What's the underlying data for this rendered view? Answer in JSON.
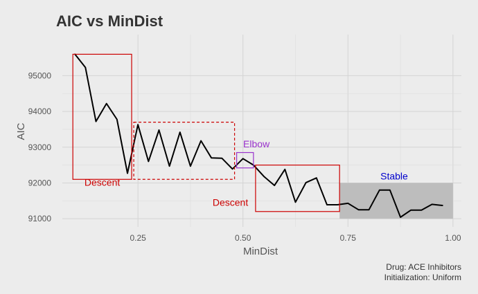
{
  "chart_data": {
    "type": "line",
    "title": "AIC vs MinDist",
    "xlabel": "MinDist",
    "ylabel": "AIC",
    "xlim": [
      0.07,
      1.02
    ],
    "ylim": [
      90770,
      96150
    ],
    "x_ticks": [
      0.25,
      0.5,
      0.75,
      1.0
    ],
    "x_tick_labels": [
      "0.25",
      "0.50",
      "0.75",
      "1.00"
    ],
    "y_ticks": [
      91000,
      92000,
      93000,
      94000,
      95000
    ],
    "y_tick_labels": [
      "91000",
      "92000",
      "93000",
      "94000",
      "95000"
    ],
    "grid": true,
    "series": [
      {
        "color": "#000000",
        "x": [
          0.1,
          0.125,
          0.15,
          0.175,
          0.2,
          0.225,
          0.25,
          0.275,
          0.3,
          0.325,
          0.35,
          0.375,
          0.4,
          0.425,
          0.45,
          0.475,
          0.5,
          0.525,
          0.55,
          0.575,
          0.6,
          0.625,
          0.65,
          0.675,
          0.7,
          0.725,
          0.75,
          0.775,
          0.8,
          0.825,
          0.85,
          0.875,
          0.9,
          0.925,
          0.95,
          0.975
        ],
        "y": [
          95600,
          95230,
          93720,
          94220,
          93780,
          92270,
          93630,
          92600,
          93480,
          92470,
          93420,
          92470,
          93180,
          92700,
          92690,
          92390,
          92680,
          92500,
          92180,
          91930,
          92380,
          91460,
          92010,
          92140,
          91390,
          91390,
          91430,
          91250,
          91250,
          91800,
          91800,
          91040,
          91240,
          91240,
          91400,
          91370
        ]
      }
    ],
    "annotations": [
      {
        "type": "rect",
        "x0": 0.095,
        "x1": 0.235,
        "y0": 92100,
        "y1": 95600,
        "stroke": "#cc0000",
        "dash": false,
        "fill": "none"
      },
      {
        "type": "rect",
        "x0": 0.24,
        "x1": 0.48,
        "y0": 92100,
        "y1": 93700,
        "stroke": "#cc0000",
        "dash": true,
        "fill": "none"
      },
      {
        "type": "rect",
        "x0": 0.485,
        "x1": 0.525,
        "y0": 92420,
        "y1": 92850,
        "stroke": "#9932cc",
        "dash": false,
        "fill": "none"
      },
      {
        "type": "rect",
        "x0": 0.53,
        "x1": 0.73,
        "y0": 91200,
        "y1": 92500,
        "stroke": "#cc0000",
        "dash": false,
        "fill": "none"
      },
      {
        "type": "rect",
        "x0": 0.73,
        "x1": 1.0,
        "y0": 91000,
        "y1": 92000,
        "stroke": "none",
        "dash": false,
        "fill": "#bdbdbd"
      },
      {
        "type": "text",
        "text": "Descent",
        "x": 0.165,
        "y": 91920,
        "color": "#cc0000",
        "anchor": "middle"
      },
      {
        "type": "text",
        "text": "Elbow",
        "x": 0.532,
        "y": 93000,
        "color": "#9932cc",
        "anchor": "middle"
      },
      {
        "type": "text",
        "text": "Descent",
        "x": 0.47,
        "y": 91360,
        "color": "#cc0000",
        "anchor": "middle"
      },
      {
        "type": "text",
        "text": "Stable",
        "x": 0.86,
        "y": 92100,
        "color": "#0000cc",
        "anchor": "middle"
      }
    ],
    "caption": [
      "Drug: ACE Inhibitors",
      "Initialization: Uniform"
    ]
  }
}
